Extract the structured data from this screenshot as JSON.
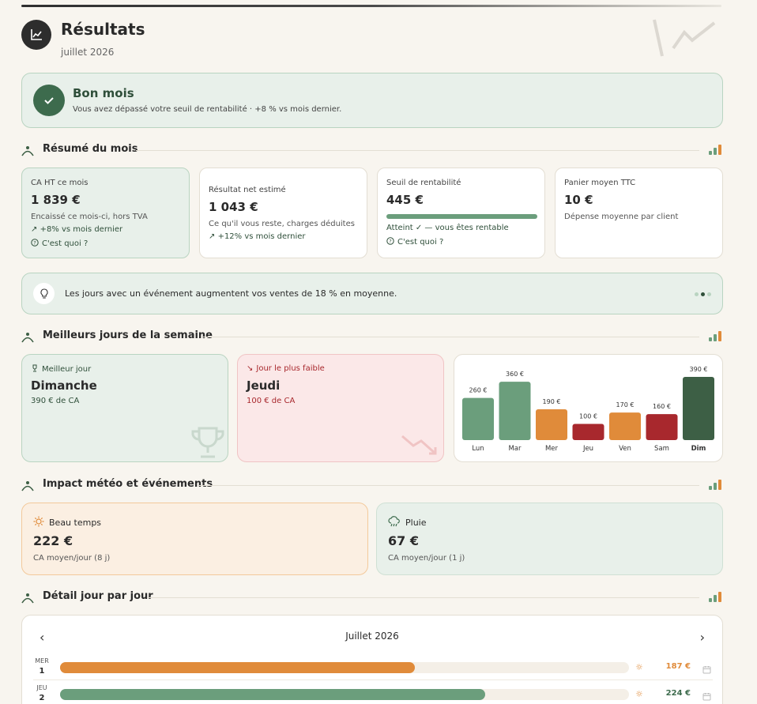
{
  "header": {
    "title": "Résultats",
    "subtitle": "juillet 2026"
  },
  "banner": {
    "title": "Bon mois",
    "text": "Vous avez dépassé votre seuil de rentabilité · +8 % vs mois dernier."
  },
  "sections": {
    "summary": "Résumé du mois",
    "best_days": "Meilleurs jours de la semaine",
    "weather": "Impact météo et événements",
    "detail": "Détail jour par jour"
  },
  "kpis": [
    {
      "label": "CA HT ce mois",
      "value": "1 839 €",
      "desc": "Encaissé ce mois-ci, hors TVA",
      "trend": "+8% vs mois dernier",
      "help": "C'est quoi ?"
    },
    {
      "label": "Résultat net estimé",
      "value": "1 043 €",
      "desc": "Ce qu'il vous reste, charges déduites",
      "trend": "+12% vs mois dernier"
    },
    {
      "label": "Seuil de rentabilité",
      "value": "445 €",
      "status": "Atteint ✓ — vous êtes rentable",
      "help": "C'est quoi ?",
      "progress": 1.0
    },
    {
      "label": "Panier moyen TTC",
      "value": "10 €",
      "desc": "Dépense moyenne par client"
    }
  ],
  "tip": {
    "text": "Les jours avec un événement augmentent vos ventes de 18 % en moyenne."
  },
  "best_day": {
    "label": "Meilleur jour",
    "day": "Dimanche",
    "amount": "390 € de CA"
  },
  "worst_day": {
    "label": "Jour le plus faible",
    "day": "Jeudi",
    "amount": "100 € de CA"
  },
  "colors": {
    "green": "#6b9e7c",
    "dark_green": "#3d5f45",
    "orange": "#e08b3a",
    "red": "#a8282d",
    "good_bg": "#e8f0ea",
    "bad_bg": "#fbe8e8"
  },
  "chart_data": {
    "type": "bar",
    "categories": [
      "Lun",
      "Mar",
      "Mer",
      "Jeu",
      "Ven",
      "Sam",
      "Dim"
    ],
    "values": [
      260,
      360,
      190,
      100,
      170,
      160,
      390
    ],
    "value_labels": [
      "260 €",
      "360 €",
      "190 €",
      "100 €",
      "170 €",
      "160 €",
      "390 €"
    ],
    "bar_colors": [
      "#6b9e7c",
      "#6b9e7c",
      "#e08b3a",
      "#a8282d",
      "#e08b3a",
      "#a8282d",
      "#3d5f45"
    ],
    "ylim": [
      0,
      390
    ]
  },
  "weather": [
    {
      "icon": "sun-icon",
      "label": "Beau temps",
      "value": "222 €",
      "desc": "CA moyen/jour (8 j)"
    },
    {
      "icon": "cloud-rain-icon",
      "label": "Pluie",
      "value": "67 €",
      "desc": "CA moyen/jour (1 j)"
    }
  ],
  "calendar": {
    "title": "Juillet 2026",
    "scale_max": 300,
    "rows": [
      {
        "dow": "MER",
        "day": "1",
        "value": 187,
        "amount": "187 €",
        "color": "#e08b3a",
        "weather": "sun-icon"
      },
      {
        "dow": "JEU",
        "day": "2",
        "value": 224,
        "amount": "224 €",
        "color": "#6b9e7c",
        "weather": "sun-icon"
      }
    ]
  }
}
